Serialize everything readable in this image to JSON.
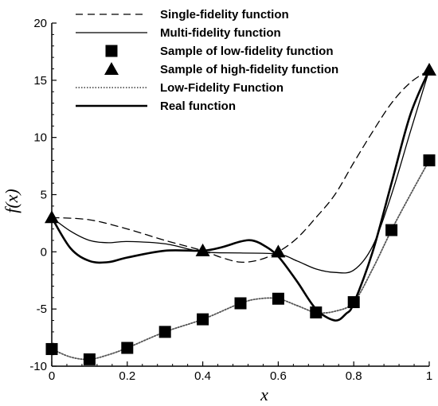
{
  "chart_data": {
    "type": "line",
    "title": "",
    "xlabel": "x",
    "ylabel": "f(x)",
    "xlim": [
      0,
      1
    ],
    "ylim": [
      -10,
      20
    ],
    "x_ticks": [
      0,
      0.2,
      0.4,
      0.6,
      0.8,
      1
    ],
    "x_tick_labels": [
      "0",
      "0.2",
      "0.4",
      "0.6",
      "0.8",
      "1"
    ],
    "y_ticks": [
      -10,
      -5,
      0,
      5,
      10,
      15,
      20
    ],
    "y_tick_labels": [
      "-10",
      "-5",
      "0",
      "5",
      "10",
      "15",
      "20"
    ],
    "grid": false,
    "legend_position": "top",
    "series": [
      {
        "name": "Single-fidelity function",
        "style": "dashed",
        "color": "#000000",
        "x": [
          0,
          0.1,
          0.2,
          0.3,
          0.4,
          0.45,
          0.5,
          0.55,
          0.6,
          0.65,
          0.7,
          0.75,
          0.8,
          0.85,
          0.9,
          0.95,
          1.0
        ],
        "y": [
          3.0,
          2.8,
          2.0,
          1.0,
          0.1,
          -0.5,
          -0.9,
          -0.7,
          0.0,
          1.2,
          3.0,
          5.0,
          7.8,
          10.5,
          13.0,
          14.8,
          15.9
        ]
      },
      {
        "name": "Multi-fidelity function",
        "style": "thin",
        "color": "#000000",
        "x": [
          0,
          0.05,
          0.1,
          0.15,
          0.2,
          0.3,
          0.4,
          0.5,
          0.6,
          0.65,
          0.7,
          0.75,
          0.8,
          0.85,
          0.9,
          0.95,
          1.0
        ],
        "y": [
          3.0,
          1.8,
          1.0,
          0.8,
          0.9,
          0.7,
          0.0,
          -0.1,
          -0.2,
          -0.8,
          -1.5,
          -1.8,
          -1.6,
          0.5,
          5.0,
          10.5,
          15.9
        ]
      },
      {
        "name": "Sample of low-fidelity function",
        "style": "square-marker",
        "color": "#000000",
        "x": [
          0,
          0.1,
          0.2,
          0.3,
          0.4,
          0.5,
          0.6,
          0.7,
          0.8,
          0.9,
          1.0
        ],
        "y": [
          -8.5,
          -9.4,
          -8.4,
          -7.0,
          -5.9,
          -4.5,
          -4.1,
          -5.3,
          -4.4,
          1.9,
          8.0
        ]
      },
      {
        "name": "Sample of high-fidelity function",
        "style": "triangle-marker",
        "color": "#000000",
        "x": [
          0,
          0.4,
          0.6,
          1.0
        ],
        "y": [
          3.0,
          0.1,
          0.0,
          15.9
        ]
      },
      {
        "name": "Low-Fidelity Function",
        "style": "dotted",
        "color": "#555555",
        "x": [
          0,
          0.05,
          0.1,
          0.15,
          0.2,
          0.3,
          0.4,
          0.5,
          0.55,
          0.6,
          0.65,
          0.7,
          0.75,
          0.8,
          0.85,
          0.9,
          0.95,
          1.0
        ],
        "y": [
          -8.5,
          -9.2,
          -9.4,
          -9.0,
          -8.4,
          -7.0,
          -5.9,
          -4.5,
          -4.1,
          -4.1,
          -4.7,
          -5.3,
          -5.2,
          -4.4,
          -1.5,
          1.9,
          5.0,
          8.0
        ]
      },
      {
        "name": "Real function",
        "style": "thick",
        "color": "#000000",
        "x": [
          0,
          0.05,
          0.1,
          0.15,
          0.2,
          0.3,
          0.4,
          0.45,
          0.5,
          0.53,
          0.56,
          0.6,
          0.65,
          0.7,
          0.75,
          0.78,
          0.8,
          0.85,
          0.9,
          0.95,
          1.0
        ],
        "y": [
          3.0,
          0.3,
          -0.8,
          -0.9,
          -0.5,
          0.1,
          0.1,
          0.4,
          0.9,
          1.0,
          0.6,
          -0.4,
          -2.6,
          -5.0,
          -6.0,
          -5.4,
          -4.5,
          0.0,
          6.0,
          12.0,
          15.9
        ]
      }
    ]
  }
}
